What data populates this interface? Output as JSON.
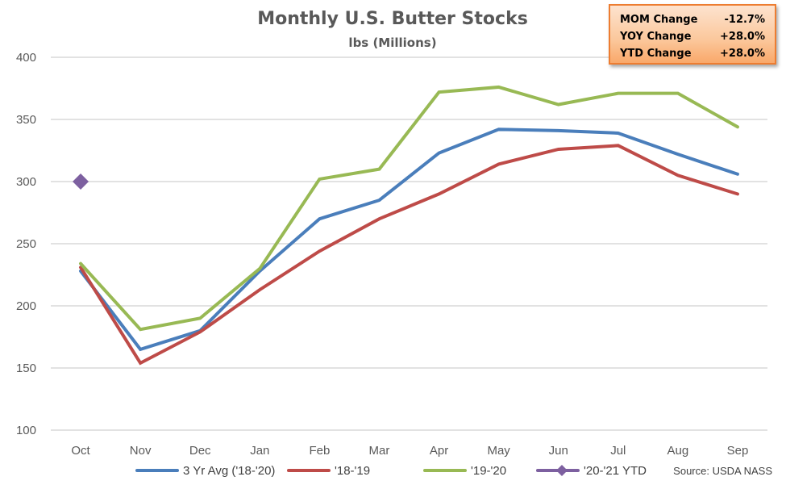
{
  "chart_data": {
    "type": "line",
    "title": "Monthly U.S. Butter Stocks",
    "subtitle": "lbs (Millions)",
    "xlabel": "",
    "ylabel": "",
    "categories": [
      "Oct",
      "Nov",
      "Dec",
      "Jan",
      "Feb",
      "Mar",
      "Apr",
      "May",
      "Jun",
      "Jul",
      "Aug",
      "Sep"
    ],
    "ylim": [
      100,
      400
    ],
    "yticks": [
      100,
      150,
      200,
      250,
      300,
      350,
      400
    ],
    "grid": "horizontal",
    "legend_position": "bottom",
    "series": [
      {
        "name": "3 Yr Avg ('18-'20)",
        "color": "#4a7ebb",
        "marker": "none",
        "values": [
          228,
          165,
          180,
          228,
          270,
          285,
          323,
          342,
          341,
          339,
          322,
          306
        ]
      },
      {
        "name": "'18-'19",
        "color": "#be4b48",
        "marker": "none",
        "values": [
          231,
          154,
          179,
          213,
          244,
          270,
          290,
          314,
          326,
          329,
          305,
          290
        ]
      },
      {
        "name": "'19-'20",
        "color": "#98b954",
        "marker": "none",
        "values": [
          234,
          181,
          190,
          230,
          302,
          310,
          372,
          376,
          362,
          371,
          371,
          344
        ]
      },
      {
        "name": "'20-'21 YTD",
        "color": "#7d60a0",
        "marker": "diamond",
        "values": [
          300,
          null,
          null,
          null,
          null,
          null,
          null,
          null,
          null,
          null,
          null,
          null
        ]
      }
    ],
    "annotations": [
      "Source: USDA NASS"
    ]
  },
  "stats_box": {
    "rows": [
      {
        "label": "MOM Change",
        "value": "-12.7%"
      },
      {
        "label": "YOY Change",
        "value": "+28.0%"
      },
      {
        "label": "YTD Change",
        "value": "+28.0%"
      }
    ],
    "border_color": "#ed7d31"
  },
  "source": "Source: USDA NASS"
}
